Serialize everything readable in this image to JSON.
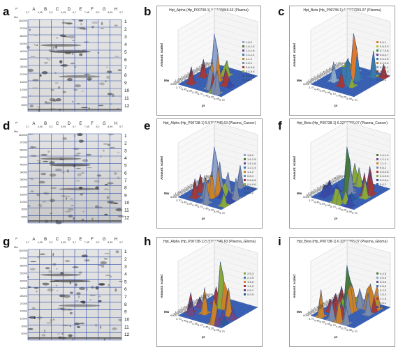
{
  "panels": [
    {
      "id": "a",
      "type": "gel",
      "letter": "a",
      "gel": {
        "lanes": [
          "A",
          "B",
          "C",
          "D",
          "E",
          "F",
          "G",
          "H"
        ],
        "pI_label": "pI",
        "pI_values": [
          "3,7",
          "4,45",
          "5,2",
          "5,95",
          "6,7",
          "7,45",
          "8,2",
          "8,95",
          "9,7"
        ],
        "mw_label": "Mw",
        "mw_values": [
          "116000",
          "97000",
          "66000",
          "52000",
          "40000",
          "34000",
          "26000",
          "21000",
          "16000",
          "12000",
          "9000",
          "6000"
        ],
        "spot_numbers": [
          "1",
          "2",
          "3",
          "4",
          "5",
          "6",
          "7",
          "8",
          "9",
          "10",
          "11",
          "12"
        ]
      }
    },
    {
      "id": "b",
      "type": "surface",
      "letter": "b",
      "title": "Hpt_Alpha (Hp_P00738-1) 5.57/15846.63 (Plasma)",
      "z_label": "Amount: scaled",
      "y_label": "Mw",
      "x_label": "pI",
      "legend": [
        "1.8-2",
        "1.6-1.8",
        "1.4-1.6",
        "1.2-1.4",
        "1-1.2",
        "0.8-1",
        "0.6-0.8",
        "0.4-0.6",
        "0.2-0.4",
        "0-0.2"
      ],
      "legend_colors": [
        "#8fa3c9",
        "#4a7a3a",
        "#6a4a8a",
        "#3a7aaa",
        "#c9822a",
        "#7a8aa8",
        "#a33a3a",
        "#8aa83a",
        "#3a4aa8",
        "#2a5aa0"
      ]
    },
    {
      "id": "c",
      "type": "surface",
      "letter": "c",
      "title": "Hpt_Beta (Hp_P00738-1) 6.32/27265.07 (Plasma)",
      "z_label": "Amount: scaled",
      "y_label": "Mw",
      "x_label": "pI",
      "legend": [
        "0.9-1",
        "0.8-0.9",
        "0.7-0.8",
        "0.6-0.7",
        "0.5-0.6",
        "0.4-0.5",
        "0.3-0.4",
        "0.2-0.3",
        "0.1-0.2",
        "0-0.1"
      ],
      "legend_colors": [
        "#e07a2a",
        "#c0c02a",
        "#2a8a3a",
        "#6a3a9a",
        "#3a7aaa",
        "#c9822a",
        "#8aa8c8",
        "#a33a3a",
        "#8aa83a",
        "#2a5aa0"
      ]
    },
    {
      "id": "d",
      "type": "gel",
      "letter": "d",
      "gel": {
        "lanes": [
          "A",
          "B",
          "C",
          "D",
          "E",
          "F",
          "G",
          "H"
        ],
        "pI_label": "pI",
        "pI_values": [
          "3,7",
          "4,45",
          "5,2",
          "5,95",
          "6,7",
          "7,45",
          "8,2",
          "8,95",
          "9,7"
        ],
        "mw_label": "Mw",
        "mw_values": [
          "116000",
          "97000",
          "66000",
          "52000",
          "40000",
          "34000",
          "26000",
          "21000",
          "16000",
          "12000",
          "9000",
          "6000"
        ],
        "spot_numbers": [
          "1",
          "2",
          "3",
          "4",
          "5",
          "6",
          "7",
          "8",
          "9",
          "10",
          "11",
          "12"
        ]
      }
    },
    {
      "id": "e",
      "type": "surface",
      "letter": "e",
      "title": "Hpt_Alpha (Hp_P00738-1) 5.57/15846.63 (Plasma_Cancer)",
      "z_label": "Amount: scaled",
      "y_label": "Mw",
      "x_label": "pI",
      "legend": [
        "1.8-2",
        "1.6-1.8",
        "1.4-1.6",
        "1.2-1.4",
        "1-1.2",
        "0.8-1",
        "0.6-0.8",
        "0.4-0.6",
        "0.2-0.4",
        "0-0.2"
      ],
      "legend_colors": [
        "#8fa3c9",
        "#4a7a3a",
        "#6a4a8a",
        "#3a7aaa",
        "#c9822a",
        "#7a8aa8",
        "#a33a3a",
        "#8aa83a",
        "#3a4aa8",
        "#2a5aa0"
      ]
    },
    {
      "id": "f",
      "type": "surface",
      "letter": "f",
      "title": "Hpt_Beta (Hp_P00738-1) 6.32/27265.07 (Plasma_Cancer)",
      "z_label": "Amount: scaled",
      "y_label": "Mw",
      "x_label": "pI",
      "legend": [
        "1.4-1.6",
        "1.2-1.4",
        "1-1.2",
        "0.8-1",
        "0.6-0.8",
        "0.4-0.6",
        "0.2-0.4",
        "0-0.2"
      ],
      "legend_colors": [
        "#4a7a3a",
        "#6a4a8a",
        "#c9822a",
        "#7a8aa8",
        "#a33a3a",
        "#8aa83a",
        "#3a4aa8",
        "#2a5aa0"
      ]
    },
    {
      "id": "g",
      "type": "gel",
      "letter": "g",
      "gel": {
        "lanes": [
          "A",
          "B",
          "C",
          "D",
          "E",
          "F",
          "G",
          "H"
        ],
        "pI_label": "pI",
        "pI_values": [
          "3,7",
          "4,45",
          "5,2",
          "5,95",
          "6,7",
          "7,45",
          "8,2",
          "8,95",
          "9,7"
        ],
        "mw_label": "Mw",
        "mw_values": [
          "116000",
          "97000",
          "66000",
          "52000",
          "40000",
          "34000",
          "26000",
          "21000",
          "16000",
          "12000",
          "9000",
          "6000"
        ],
        "spot_numbers": [
          "1",
          "2",
          "3",
          "4",
          "5",
          "6",
          "7",
          "8",
          "9",
          "10",
          "11",
          "12"
        ]
      }
    },
    {
      "id": "h",
      "type": "surface",
      "letter": "h",
      "title": "Hpt_Alpha (Hp_P00738-1) 5.57/15846.63 (Plasma_Glioma)",
      "z_label": "Amount: scaled",
      "y_label": "Mw",
      "x_label": "pI",
      "legend": [
        "2.5-3",
        "2-2.5",
        "1.5-2",
        "1-1.5",
        "0.5-1",
        "0-0.5"
      ],
      "legend_colors": [
        "#8aa83a",
        "#3a7aaa",
        "#c9822a",
        "#a33a3a",
        "#6a4a8a",
        "#2a5aa0"
      ]
    },
    {
      "id": "i",
      "type": "surface",
      "letter": "i",
      "title": "Hpt_Beta (Hp_P00738-1) 6.32/27265.07 (Plasma_Glioma)",
      "z_label": "Amount: scaled",
      "y_label": "Mw",
      "x_label": "pI",
      "legend": [
        "4-4.5",
        "3.5-4",
        "3-3.5",
        "2.5-3",
        "2-2.5",
        "1.5-2",
        "1-1.5",
        "0.5-1",
        "0-0.5"
      ],
      "legend_colors": [
        "#4a7a3a",
        "#8fa3c9",
        "#6a4a8a",
        "#3a7aaa",
        "#c9822a",
        "#7a8aa8",
        "#a33a3a",
        "#8aa83a",
        "#2a5aa0"
      ]
    }
  ],
  "surface_axis": {
    "mw_ticks": [
      "136000",
      "116000",
      "97000",
      "66000",
      "52000",
      "40000",
      "34000",
      "26000",
      "21000",
      "16000",
      "12000",
      "9000",
      "6000"
    ],
    "pi_ticks": [
      "3.70",
      "4.45",
      "5.20",
      "5.95",
      "6.70",
      "7.45",
      "8.20",
      "8.95",
      "9.70"
    ]
  }
}
